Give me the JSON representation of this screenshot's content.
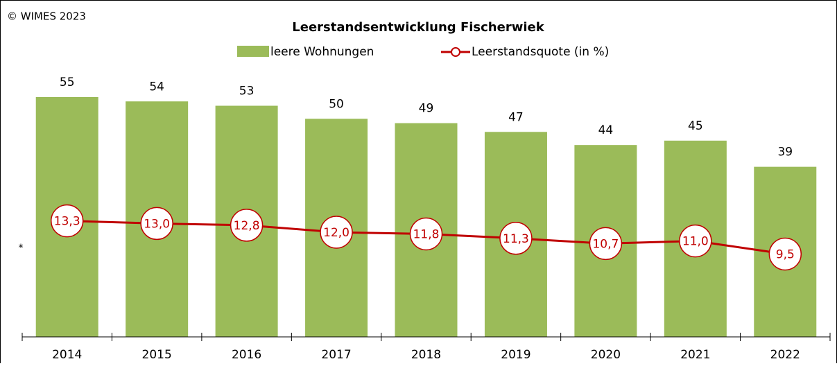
{
  "chart_data": {
    "type": "bar",
    "title": "Leerstandsentwicklung  Fischerwiek",
    "copyright": "© WIMES 2023",
    "annotation": "*",
    "categories": [
      "2014",
      "2015",
      "2016",
      "2017",
      "2018",
      "2019",
      "2020",
      "2021",
      "2022"
    ],
    "series": [
      {
        "name": "leere Wohnungen",
        "type": "bar",
        "color": "#9bbb59",
        "values": [
          55,
          54,
          53,
          50,
          49,
          47,
          44,
          45,
          39
        ]
      },
      {
        "name": "Leerstandsquote (in %)",
        "type": "line",
        "axis": "y2",
        "color": "#c00000",
        "values": [
          13.3,
          13.0,
          12.8,
          12.0,
          11.8,
          11.3,
          10.7,
          11.0,
          9.5
        ],
        "value_labels": [
          "13,3",
          "13,0",
          "12,8",
          "12,0",
          "11,8",
          "11,3",
          "10,7",
          "11,0",
          "9,5"
        ]
      }
    ],
    "ylim": [
      0,
      60
    ],
    "y2lim": [
      0,
      30
    ]
  }
}
